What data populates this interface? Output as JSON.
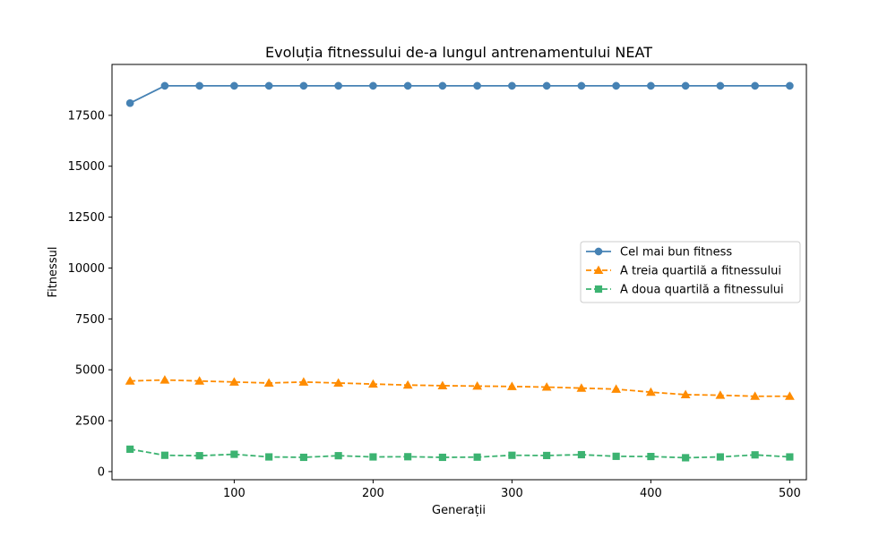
{
  "chart_data": {
    "type": "line",
    "title": "Evoluția fitnessului de-a lungul antrenamentului NEAT",
    "xlabel": "Generații",
    "ylabel": "Fitnessul",
    "xlim": [
      12,
      512
    ],
    "ylim": [
      -400,
      20000
    ],
    "xticks": [
      100,
      200,
      300,
      400,
      500
    ],
    "yticks": [
      0,
      2500,
      5000,
      7500,
      10000,
      12500,
      15000,
      17500
    ],
    "grid": false,
    "legend_position": "center-right",
    "x": [
      25,
      50,
      75,
      100,
      125,
      150,
      175,
      200,
      225,
      250,
      275,
      300,
      325,
      350,
      375,
      400,
      425,
      450,
      475,
      500
    ],
    "series": [
      {
        "name": "Cel mai bun fitness",
        "color": "#4682b4",
        "marker": "circle",
        "dash": "solid",
        "values": [
          18100,
          18950,
          18950,
          18950,
          18950,
          18950,
          18950,
          18950,
          18950,
          18950,
          18950,
          18950,
          18950,
          18950,
          18950,
          18950,
          18950,
          18950,
          18950,
          18950
        ]
      },
      {
        "name": "A treia quartilă a fitnessului",
        "color": "#ff8c00",
        "marker": "triangle",
        "dash": "dashed",
        "values": [
          4450,
          4500,
          4450,
          4400,
          4350,
          4400,
          4350,
          4300,
          4250,
          4220,
          4200,
          4180,
          4150,
          4100,
          4050,
          3900,
          3780,
          3750,
          3700,
          3700
        ]
      },
      {
        "name": "A doua quartilă a fitnessului",
        "color": "#3cb371",
        "marker": "square",
        "dash": "dashed",
        "values": [
          1100,
          800,
          780,
          850,
          720,
          700,
          780,
          720,
          730,
          700,
          710,
          800,
          790,
          830,
          750,
          740,
          680,
          720,
          820,
          720
        ]
      }
    ]
  }
}
